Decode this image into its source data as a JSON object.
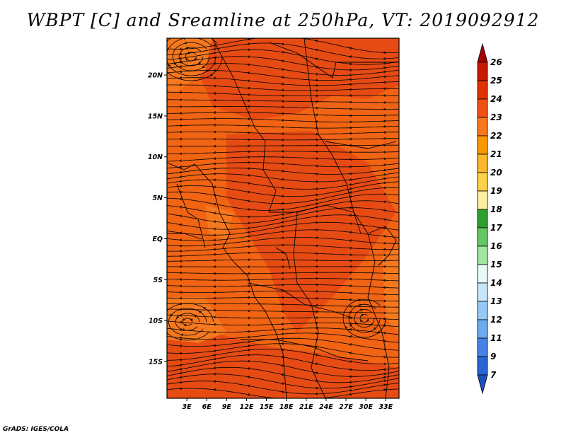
{
  "title": "WBPT [C] and Sreamline at 250hPa, VT: 2019092912",
  "credit": "GrADS: IGES/COLA",
  "lat_labels": [
    {
      "text": "20N",
      "lat": 20
    },
    {
      "text": "15N",
      "lat": 15
    },
    {
      "text": "10N",
      "lat": 10
    },
    {
      "text": "5N",
      "lat": 5
    },
    {
      "text": "EQ",
      "lat": 0
    },
    {
      "text": "5S",
      "lat": -5
    },
    {
      "text": "10S",
      "lat": -10
    },
    {
      "text": "15S",
      "lat": -15
    }
  ],
  "lon_labels": [
    {
      "text": "3E",
      "lon": 3
    },
    {
      "text": "6E",
      "lon": 6
    },
    {
      "text": "9E",
      "lon": 9
    },
    {
      "text": "12E",
      "lon": 12
    },
    {
      "text": "15E",
      "lon": 15
    },
    {
      "text": "18E",
      "lon": 18
    },
    {
      "text": "21E",
      "lon": 21
    },
    {
      "text": "24E",
      "lon": 24
    },
    {
      "text": "27E",
      "lon": 27
    },
    {
      "text": "30E",
      "lon": 30
    },
    {
      "text": "33E",
      "lon": 33
    }
  ],
  "colorbar": {
    "labels": [
      "26",
      "25",
      "24",
      "23",
      "22",
      "21",
      "20",
      "19",
      "18",
      "17",
      "16",
      "15",
      "14",
      "13",
      "12",
      "11",
      "9",
      "7"
    ],
    "colors": [
      "#a50000",
      "#c41a00",
      "#e03200",
      "#f05014",
      "#f8781e",
      "#fa9a00",
      "#fab82a",
      "#fcd24a",
      "#fcf0a0",
      "#2ca02c",
      "#64c864",
      "#a0e6a0",
      "#e6faf8",
      "#c8e6fa",
      "#96c8f5",
      "#6eaaf0",
      "#4682e6",
      "#2864d2",
      "#1e50be"
    ]
  },
  "map": {
    "lat_range": [
      -19.5,
      24.5
    ],
    "lon_range": [
      0,
      35
    ],
    "colors": {
      "base": "#f06414",
      "warm": "#e64b14",
      "cool": "#f5781e",
      "stream": "#000000"
    }
  }
}
